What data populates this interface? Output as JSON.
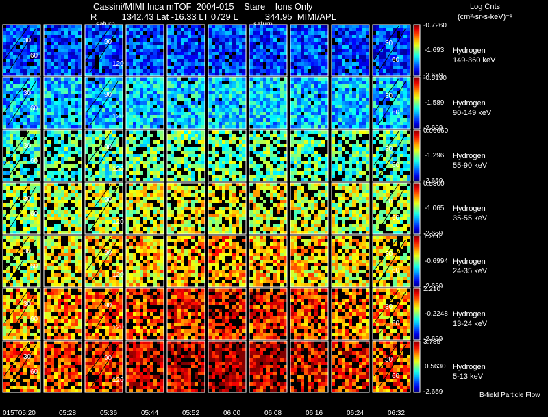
{
  "chart_data": {
    "type": "heatmap",
    "title": "Cassini/MIMI Inca mTOF  2004-015    Stare    Ions Only",
    "ephemeris": "R          1342.43 Lat -16.33 LT 0729 L           344.95  MIMI/APL",
    "units_line1": "Log Cnts",
    "units_line2": "(cm²-sr-s-keV)⁻¹",
    "footer_label": "B-field Particle Flow",
    "saturn_labels": [
      "saturn",
      "saturn"
    ],
    "time_ticks": [
      "015T05:20",
      "05:28",
      "05:36",
      "05:44",
      "05:52",
      "06:00",
      "06:08",
      "06:16",
      "06:24",
      "06:32"
    ],
    "contour_labels": [
      "30",
      "60",
      "90",
      "120"
    ],
    "rows": [
      {
        "species": "Hydrogen",
        "energy": "149-360 keV",
        "cbar_max": "-0.7260",
        "cbar_mid": "-1.693",
        "cbar_min": "-2.659",
        "level": 0.18
      },
      {
        "species": "Hydrogen",
        "energy": "90-149 keV",
        "cbar_max": "-0.5190",
        "cbar_mid": "-1.589",
        "cbar_min": "-2.659",
        "level": 0.3
      },
      {
        "species": "Hydrogen",
        "energy": "55-90 keV",
        "cbar_max": "0.06660",
        "cbar_mid": "-1.296",
        "cbar_min": "-2.659",
        "level": 0.42
      },
      {
        "species": "Hydrogen",
        "energy": "35-55 keV",
        "cbar_max": "0.5300",
        "cbar_mid": "-1.065",
        "cbar_min": "-2.659",
        "level": 0.52
      },
      {
        "species": "Hydrogen",
        "energy": "24-35 keV",
        "cbar_max": "1.260",
        "cbar_mid": "-0.6994",
        "cbar_min": "-2.659",
        "level": 0.58
      },
      {
        "species": "Hydrogen",
        "energy": "13-24 keV",
        "cbar_max": "2.210",
        "cbar_mid": "-0.2248",
        "cbar_min": "-2.659",
        "level": 0.68
      },
      {
        "species": "Hydrogen",
        "energy": "5-13 keV",
        "cbar_max": "3.785",
        "cbar_mid": "0.5630",
        "cbar_min": "-2.659",
        "level": 0.74
      }
    ]
  }
}
